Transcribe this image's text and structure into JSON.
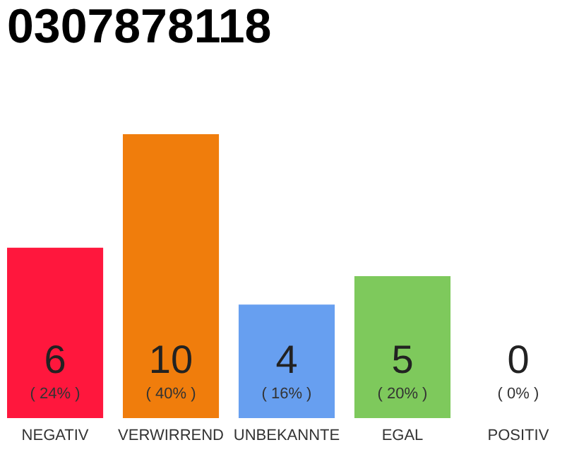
{
  "chart_data": {
    "type": "bar",
    "title": "0307878118",
    "categories": [
      "NEGATIV",
      "VERWIRREND",
      "UNBEKANNTE",
      "EGAL",
      "POSITIV"
    ],
    "values": [
      6,
      10,
      4,
      5,
      0
    ],
    "colors": [
      "#ff173d",
      "#f07d0c",
      "#679ff0",
      "#7ec95c",
      "#2aa84a"
    ],
    "data_labels": true,
    "tick_labels": "x",
    "annotations": [
      {
        "text": "( 24% )",
        "x": "NEGATIV",
        "y": 0
      },
      {
        "text": "( 40% )",
        "x": "VERWIRREND",
        "y": 0
      },
      {
        "text": "( 16% )",
        "x": "UNBEKANNTE",
        "y": 0
      },
      {
        "text": "( 20% )",
        "x": "EGAL",
        "y": 0
      },
      {
        "text": "( 0% )",
        "x": "POSITIV",
        "y": 0
      }
    ]
  }
}
